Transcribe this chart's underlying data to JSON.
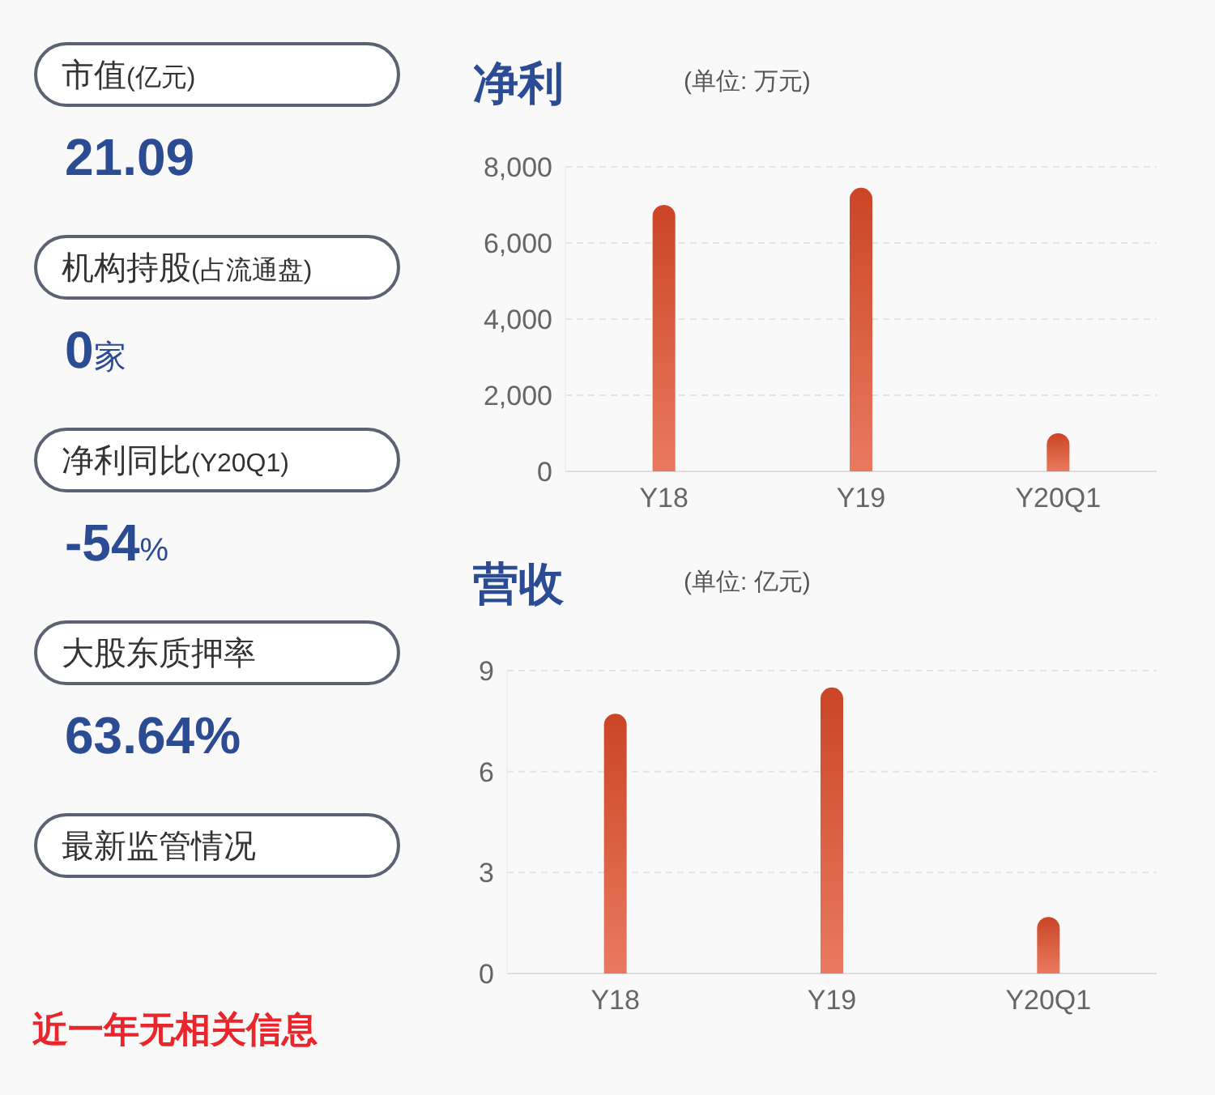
{
  "chart_data": [
    {
      "type": "other",
      "annotations": [
        "市值(亿元)",
        "21.09",
        "机构持股(占流通盘)",
        "0家",
        "净利同比(Y20Q1)",
        "-54%",
        "大股东质押率",
        "63.64%",
        "最新监管情况",
        "近一年无相关信息"
      ]
    },
    {
      "type": "bar",
      "title": "净利",
      "subtitle": "(单位: 万元)",
      "categories": [
        "Y18",
        "Y19",
        "Y20Q1"
      ],
      "values": [
        7000,
        7450,
        1000
      ],
      "color": "#e14d2a",
      "ylim": [
        0,
        8000
      ],
      "yticks": [
        0,
        {
          "value": 2000,
          "label": "2,000"
        },
        {
          "value": 4000,
          "label": "4,000"
        },
        {
          "value": 6000,
          "label": "6,000"
        },
        {
          "value": 8000,
          "label": "8,000"
        }
      ],
      "grid": "y"
    },
    {
      "type": "bar",
      "title": "营收",
      "subtitle": "(单位: 亿元)",
      "categories": [
        "Y18",
        "Y19",
        "Y20Q1"
      ],
      "values": [
        7.72,
        8.5,
        1.68
      ],
      "color": "#e14d2a",
      "ylim": [
        0,
        9
      ],
      "yticks": [
        0,
        3,
        6,
        9
      ],
      "grid": "y"
    }
  ]
}
